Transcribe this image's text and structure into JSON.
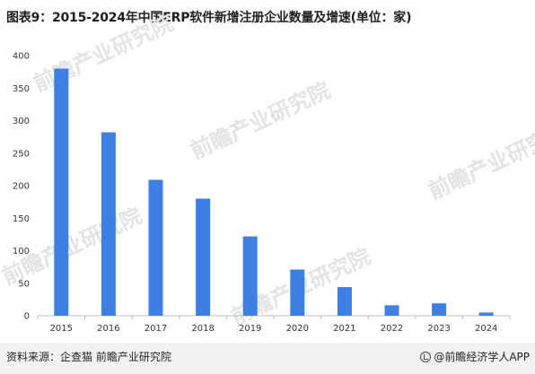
{
  "title": "图表9：2015-2024年中国ERP软件新增注册企业数量及增速(单位：家)",
  "source": "资料来源：企查猫 前瞻产业研究院",
  "brand": "@前瞻经济学人APP",
  "watermark_text": "前瞻产业研究院",
  "colors": {
    "bar": "#3d7fe3",
    "axis": "#bfbfbf",
    "footer": "#f2f2f2"
  },
  "chart_data": {
    "type": "bar",
    "categories": [
      "2015",
      "2016",
      "2017",
      "2018",
      "2019",
      "2020",
      "2021",
      "2022",
      "2023",
      "2024"
    ],
    "values": [
      380,
      282,
      209,
      180,
      122,
      71,
      44,
      16,
      19,
      5
    ],
    "title": "",
    "xlabel": "",
    "ylabel": "",
    "ylim": [
      0,
      400
    ],
    "yticks": [
      0,
      50,
      100,
      150,
      200,
      250,
      300,
      350,
      400
    ],
    "grid": false,
    "legend": "none"
  }
}
